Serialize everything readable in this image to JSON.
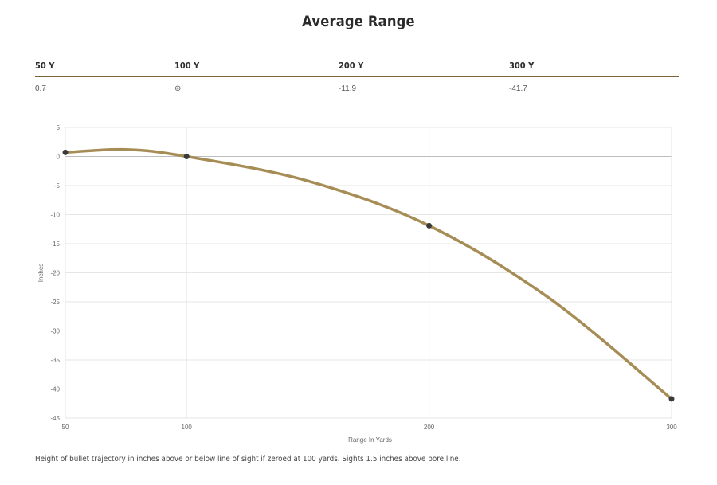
{
  "title": "Average Range",
  "range_table": {
    "headers": [
      "50 Y",
      "100 Y",
      "200 Y",
      "300 Y"
    ],
    "values": [
      "0.7",
      "⊕",
      "-11.9",
      "-41.7"
    ]
  },
  "footnote": "Height of bullet trajectory in inches above or below line of sight if zeroed at 100 yards. Sights 1.5 inches above bore line.",
  "colors": {
    "line": "#a68c55",
    "point": "#3a3a3a",
    "rule": "#7a6239",
    "grid": "#e6e6e6",
    "zero": "#bdbdbd"
  },
  "chart_data": {
    "type": "line",
    "xlabel": "Range In Yards",
    "ylabel": "Inches",
    "x": [
      50,
      100,
      200,
      300
    ],
    "series": [
      {
        "values": [
          0.7,
          0,
          -11.9,
          -41.7
        ]
      }
    ],
    "curve_points": [
      [
        50,
        0.7
      ],
      [
        75,
        1.2
      ],
      [
        100,
        0
      ],
      [
        150,
        -4.2
      ],
      [
        200,
        -11.9
      ],
      [
        250,
        -24.5
      ],
      [
        300,
        -41.7
      ]
    ],
    "xticks": [
      "50",
      "100",
      "200",
      "300"
    ],
    "yticks": [
      "5",
      "0",
      "-5",
      "-10",
      "-15",
      "-20",
      "-25",
      "-30",
      "-35",
      "-40",
      "-45"
    ],
    "xlim": [
      50,
      300
    ],
    "ylim": [
      -45,
      5
    ],
    "grid": true,
    "legend": "none"
  }
}
